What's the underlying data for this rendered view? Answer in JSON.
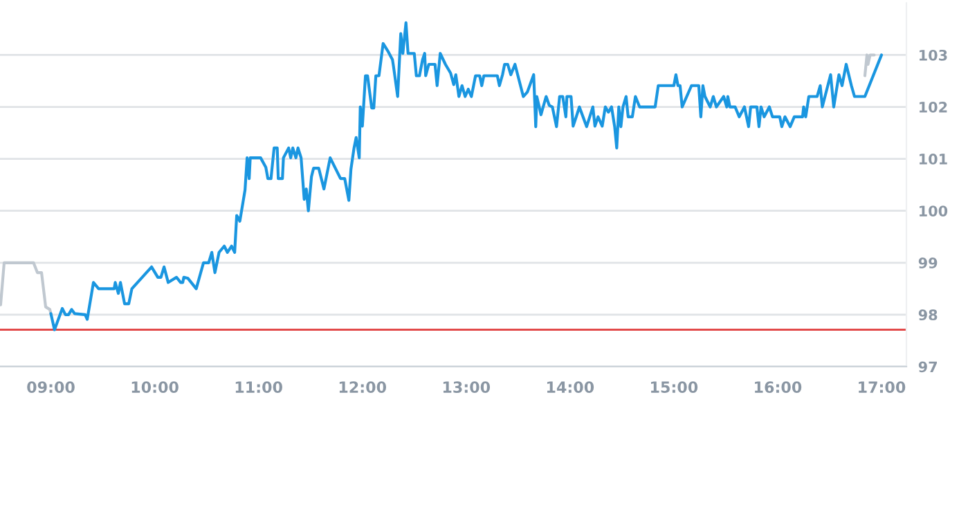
{
  "chart_data": {
    "type": "line",
    "xlim": [
      8.51,
      17.24
    ],
    "ylim": [
      97,
      104
    ],
    "xticks": [
      {
        "value": 9,
        "label": "09:00"
      },
      {
        "value": 10,
        "label": "10:00"
      },
      {
        "value": 11,
        "label": "11:00"
      },
      {
        "value": 12,
        "label": "12:00"
      },
      {
        "value": 13,
        "label": "13:00"
      },
      {
        "value": 14,
        "label": "14:00"
      },
      {
        "value": 15,
        "label": "15:00"
      },
      {
        "value": 16,
        "label": "16:00"
      },
      {
        "value": 17,
        "label": "17:00"
      }
    ],
    "yticks": [
      97,
      98,
      99,
      100,
      101,
      102,
      103
    ],
    "grid": "y",
    "legend": false,
    "line_style": "solid",
    "marker": "none",
    "ref_lines": [
      {
        "axis": "y",
        "value": 97.71,
        "color": "#e03a3a"
      }
    ],
    "series": [
      {
        "color": "#c0c8d0",
        "x": [
          8.516,
          8.55,
          8.833,
          8.87,
          8.91,
          8.95,
          8.99,
          9.0
        ],
        "values": [
          98.19,
          99.0,
          99.0,
          98.81,
          98.81,
          98.15,
          98.1,
          98.02
        ]
      },
      {
        "color": "#1a96e0",
        "x": [
          9.0,
          9.035,
          9.11,
          9.14,
          9.17,
          9.2,
          9.23,
          9.33,
          9.35,
          9.41,
          9.46,
          9.61,
          9.62,
          9.65,
          9.67,
          9.71,
          9.75,
          9.78,
          9.97,
          10.03,
          10.06,
          10.09,
          10.13,
          10.21,
          10.25,
          10.27,
          10.28,
          10.32,
          10.4,
          10.47,
          10.52,
          10.55,
          10.58,
          10.62,
          10.67,
          10.7,
          10.74,
          10.77,
          10.79,
          10.82,
          10.87,
          10.89,
          10.91,
          10.92,
          11.02,
          11.07,
          11.09,
          11.12,
          11.15,
          11.18,
          11.19,
          11.23,
          11.24,
          11.29,
          11.31,
          11.33,
          11.36,
          11.38,
          11.41,
          11.44,
          11.46,
          11.48,
          11.51,
          11.53,
          11.58,
          11.63,
          11.69,
          11.79,
          11.83,
          11.87,
          11.89,
          11.92,
          11.94,
          11.97,
          11.98,
          12.0,
          12.03,
          12.05,
          12.09,
          12.11,
          12.13,
          12.16,
          12.2,
          12.25,
          12.29,
          12.3,
          12.34,
          12.37,
          12.39,
          12.42,
          12.44,
          12.5,
          12.52,
          12.55,
          12.58,
          12.6,
          12.61,
          12.64,
          12.7,
          12.72,
          12.75,
          12.8,
          12.85,
          12.88,
          12.9,
          12.93,
          12.96,
          12.99,
          13.02,
          13.05,
          13.09,
          13.13,
          13.15,
          13.17,
          13.3,
          13.32,
          13.35,
          13.37,
          13.4,
          13.43,
          13.47,
          13.55,
          13.59,
          13.65,
          13.67,
          13.68,
          13.7,
          13.72,
          13.77,
          13.8,
          13.83,
          13.87,
          13.9,
          13.93,
          13.96,
          13.97,
          14.01,
          14.03,
          14.06,
          14.09,
          14.16,
          14.22,
          14.24,
          14.27,
          14.31,
          14.34,
          14.37,
          14.4,
          14.43,
          14.45,
          14.47,
          14.49,
          14.51,
          14.54,
          14.56,
          14.6,
          14.63,
          14.67,
          14.82,
          14.85,
          15.0,
          15.02,
          15.04,
          15.06,
          15.08,
          15.17,
          15.24,
          15.26,
          15.28,
          15.3,
          15.35,
          15.38,
          15.41,
          15.48,
          15.51,
          15.52,
          15.54,
          15.59,
          15.63,
          15.68,
          15.72,
          15.74,
          15.8,
          15.82,
          15.84,
          15.87,
          15.92,
          15.95,
          16.02,
          16.04,
          16.07,
          16.12,
          16.16,
          16.24,
          16.25,
          16.27,
          16.3,
          16.38,
          16.41,
          16.43,
          16.51,
          16.54,
          16.59,
          16.62,
          16.66,
          16.71,
          16.74,
          16.84,
          17.0
        ],
        "values": [
          98.02,
          97.71,
          98.12,
          98.0,
          98.0,
          98.1,
          98.02,
          98.0,
          97.91,
          98.62,
          98.5,
          98.5,
          98.62,
          98.41,
          98.62,
          98.21,
          98.21,
          98.5,
          98.92,
          98.72,
          98.72,
          98.92,
          98.62,
          98.72,
          98.62,
          98.62,
          98.72,
          98.7,
          98.5,
          99.0,
          99.0,
          99.2,
          98.81,
          99.2,
          99.32,
          99.2,
          99.32,
          99.2,
          99.91,
          99.8,
          100.4,
          101.02,
          100.62,
          101.02,
          101.02,
          100.84,
          100.62,
          100.62,
          101.21,
          101.21,
          100.62,
          100.62,
          101.02,
          101.21,
          101.02,
          101.21,
          101.02,
          101.21,
          101.02,
          100.22,
          100.42,
          100.0,
          100.66,
          100.82,
          100.82,
          100.42,
          101.02,
          100.62,
          100.62,
          100.2,
          100.8,
          101.21,
          101.41,
          101.02,
          102.0,
          101.63,
          102.6,
          102.6,
          101.98,
          101.98,
          102.6,
          102.6,
          103.22,
          103.06,
          102.91,
          102.78,
          102.2,
          103.41,
          103.03,
          103.62,
          103.03,
          103.03,
          102.6,
          102.6,
          102.91,
          103.03,
          102.6,
          102.82,
          102.82,
          102.41,
          103.03,
          102.82,
          102.65,
          102.43,
          102.62,
          102.2,
          102.41,
          102.2,
          102.34,
          102.2,
          102.6,
          102.6,
          102.41,
          102.6,
          102.6,
          102.41,
          102.62,
          102.82,
          102.82,
          102.62,
          102.82,
          102.2,
          102.29,
          102.62,
          101.62,
          102.2,
          102.03,
          101.85,
          102.2,
          102.03,
          102.0,
          101.62,
          102.2,
          102.2,
          101.81,
          102.2,
          102.2,
          101.63,
          101.81,
          102.0,
          101.62,
          102.0,
          101.63,
          101.81,
          101.63,
          102.0,
          101.9,
          102.0,
          101.62,
          101.21,
          102.0,
          101.62,
          102.0,
          102.2,
          101.81,
          101.81,
          102.2,
          102.0,
          102.0,
          102.41,
          102.41,
          102.62,
          102.41,
          102.41,
          102.0,
          102.41,
          102.41,
          101.81,
          102.41,
          102.2,
          102.0,
          102.2,
          102.0,
          102.2,
          102.0,
          102.2,
          102.0,
          102.0,
          101.81,
          102.0,
          101.62,
          102.0,
          102.0,
          101.62,
          102.0,
          101.81,
          102.0,
          101.81,
          101.81,
          101.62,
          101.81,
          101.62,
          101.81,
          101.81,
          102.0,
          101.81,
          102.2,
          102.2,
          102.41,
          102.0,
          102.62,
          102.0,
          102.62,
          102.41,
          102.82,
          102.41,
          102.2,
          102.2,
          103.0
        ]
      },
      {
        "color": "#c0c8d0",
        "x": [
          16.84,
          16.86,
          16.87,
          16.89,
          16.93
        ],
        "values": [
          102.6,
          103.0,
          102.82,
          103.0,
          103.0
        ]
      }
    ]
  }
}
